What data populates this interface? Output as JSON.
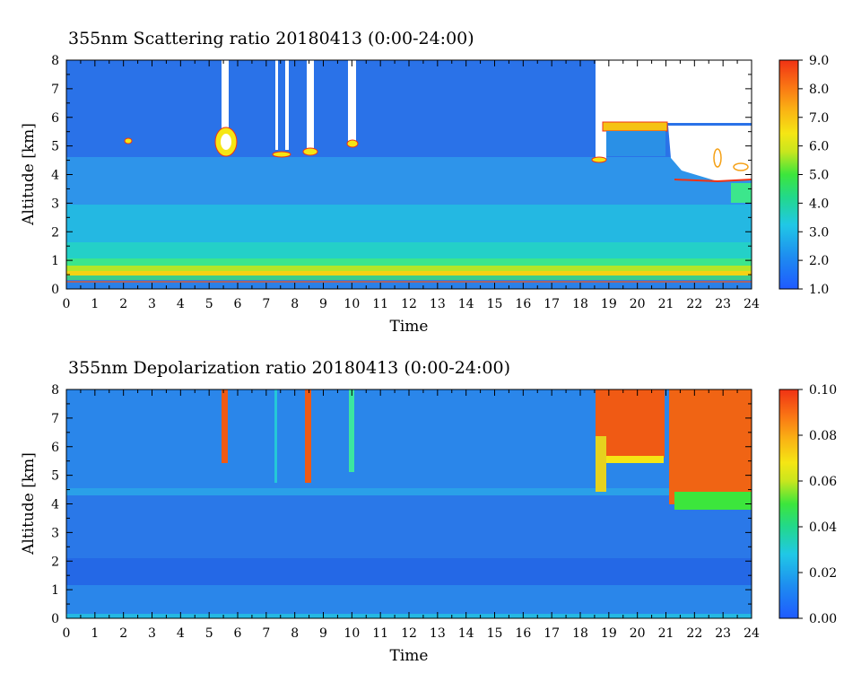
{
  "chart_data": [
    {
      "type": "heatmap",
      "title": "355nm Scattering ratio  20180413 (0:00-24:00)",
      "xlabel": "Time",
      "ylabel": "Altitude [km]",
      "xlim": [
        0,
        24
      ],
      "ylim": [
        0,
        8
      ],
      "x_ticks": [
        "0",
        "1",
        "2",
        "3",
        "4",
        "5",
        "6",
        "7",
        "8",
        "9",
        "10",
        "11",
        "12",
        "13",
        "14",
        "15",
        "16",
        "17",
        "18",
        "19",
        "20",
        "21",
        "22",
        "23",
        "24"
      ],
      "y_ticks": [
        "0",
        "1",
        "2",
        "3",
        "4",
        "5",
        "6",
        "7",
        "8"
      ],
      "colorbar": {
        "range": [
          1.0,
          9.0
        ],
        "ticks": [
          "1.0",
          "2.0",
          "3.0",
          "4.0",
          "5.0",
          "6.0",
          "7.0",
          "8.0",
          "9.0"
        ]
      },
      "grid": false
    },
    {
      "type": "heatmap",
      "title": "355nm Depolarization ratio  20180413 (0:00-24:00)",
      "xlabel": "Time",
      "ylabel": "Altitude [km]",
      "xlim": [
        0,
        24
      ],
      "ylim": [
        0,
        8
      ],
      "x_ticks": [
        "0",
        "1",
        "2",
        "3",
        "4",
        "5",
        "6",
        "7",
        "8",
        "9",
        "10",
        "11",
        "12",
        "13",
        "14",
        "15",
        "16",
        "17",
        "18",
        "19",
        "20",
        "21",
        "22",
        "23",
        "24"
      ],
      "y_ticks": [
        "0",
        "1",
        "2",
        "3",
        "4",
        "5",
        "6",
        "7",
        "8"
      ],
      "colorbar": {
        "range": [
          0.0,
          0.1
        ],
        "ticks": [
          "0.00",
          "0.02",
          "0.04",
          "0.06",
          "0.08",
          "0.10"
        ]
      },
      "grid": false
    }
  ]
}
